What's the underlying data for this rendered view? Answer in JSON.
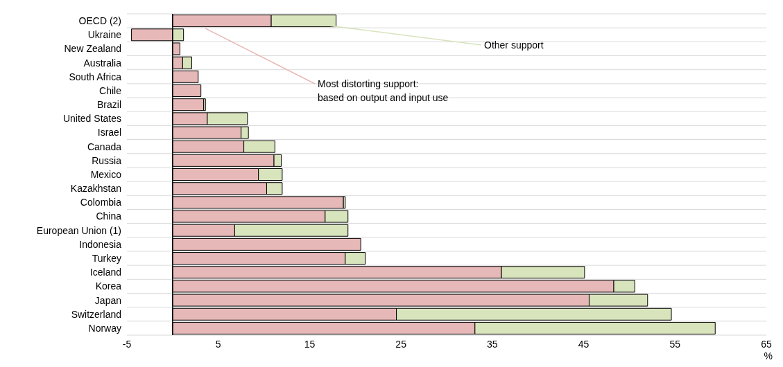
{
  "chart_data": {
    "type": "bar",
    "orientation": "horizontal",
    "stacked": true,
    "categories": [
      "OECD (2)",
      "Ukraine",
      "New Zealand",
      "Australia",
      "South Africa",
      "Chile",
      "Brazil",
      "United States",
      "Israel",
      "Canada",
      "Russia",
      "Mexico",
      "Kazakhstan",
      "Colombia",
      "China",
      "European Union (1)",
      "Indonesia",
      "Turkey",
      "Iceland",
      "Korea",
      "Japan",
      "Switzerland",
      "Norway"
    ],
    "series": [
      {
        "name": "Most distorting support:\nbased on output and input use",
        "color": "#e6b8b7",
        "values": [
          10.8,
          -4.5,
          0.8,
          1.1,
          2.8,
          3.1,
          3.4,
          3.8,
          7.5,
          7.8,
          11.1,
          9.4,
          10.3,
          18.7,
          16.7,
          6.8,
          20.6,
          18.9,
          36.0,
          48.3,
          45.6,
          24.5,
          33.1
        ]
      },
      {
        "name": "Other support",
        "color": "#d8e4bc",
        "values": [
          7.1,
          1.2,
          0,
          1.0,
          0,
          0,
          0.2,
          4.4,
          0.8,
          3.4,
          0.8,
          2.6,
          1.7,
          0.2,
          2.5,
          12.4,
          0,
          2.2,
          9.1,
          2.3,
          6.4,
          30.1,
          26.3
        ]
      }
    ],
    "xlim": [
      -5,
      65
    ],
    "xticks": [
      -5,
      5,
      15,
      25,
      35,
      45,
      55,
      65
    ],
    "xlabel": "%",
    "grid": "y"
  }
}
